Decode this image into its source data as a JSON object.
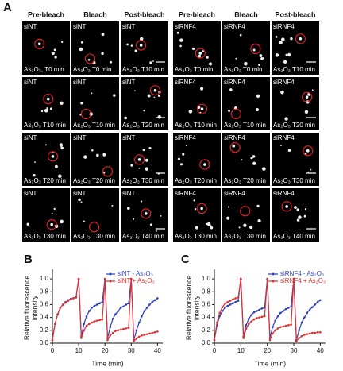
{
  "panel_a": {
    "label": "A",
    "grids": [
      {
        "headers": [
          "Pre-bleach",
          "Bleach",
          "Post-bleach"
        ],
        "rows": [
          [
            {
              "sample": "siNT",
              "time": "As₂O₃, T0 min"
            },
            {
              "sample": "siNT",
              "time": "As₂O₃ T0 min"
            },
            {
              "sample": "siNT",
              "time": "As₂O₃ T10 min"
            }
          ],
          [
            {
              "sample": "siNT",
              "time": "As₂O₃ T10 min"
            },
            {
              "sample": "siNT",
              "time": "As₂O₃ T10 min"
            },
            {
              "sample": "siNT",
              "time": "As₂O₃ T20 min"
            }
          ],
          [
            {
              "sample": "siNT",
              "time": "As₂O₃ T20 min"
            },
            {
              "sample": "siNT",
              "time": "As₂O₃ T20 min"
            },
            {
              "sample": "siNT",
              "time": "As₂O₃ T30 min"
            }
          ],
          [
            {
              "sample": "siNT",
              "time": "As₂O₃ T30 min"
            },
            {
              "sample": "siNT",
              "time": "As₂O₃ T30 min"
            },
            {
              "sample": "siNT",
              "time": "As₂O₃ T40 min"
            }
          ]
        ]
      },
      {
        "headers": [
          "Pre-bleach",
          "Bleach",
          "Post-bleach"
        ],
        "rows": [
          [
            {
              "sample": "siRNF4",
              "time": "As₂O₃ T0 min"
            },
            {
              "sample": "siRNF4",
              "time": "As₂O₃ T0 min"
            },
            {
              "sample": "siRNF4",
              "time": "As₂O₃ T10 min"
            }
          ],
          [
            {
              "sample": "siRNF4",
              "time": "As₂O₃ T10 min"
            },
            {
              "sample": "siRNF4",
              "time": "As₂O₃ T10 min"
            },
            {
              "sample": "siRNF4",
              "time": "As₂O₃ T20 min"
            }
          ],
          [
            {
              "sample": "siRNF4",
              "time": "As₂O₃ T20 min"
            },
            {
              "sample": "siRNF4",
              "time": "As₂O₃ T20 min"
            },
            {
              "sample": "siRNF4",
              "time": "As₂O₃ T30 min"
            }
          ],
          [
            {
              "sample": "siRNF4",
              "time": "As₂O₃ T30 min"
            },
            {
              "sample": "siRNF4",
              "time": "As₂O₃ T30 min"
            },
            {
              "sample": "siRNF4",
              "time": "As₂O₃ T40 min"
            }
          ]
        ]
      }
    ]
  },
  "chart_data": [
    {
      "type": "line",
      "panel_label": "B",
      "xlabel": "Time (min)",
      "ylabel": [
        "Relative fluorescence",
        "intensity"
      ],
      "xlim": [
        0,
        42
      ],
      "ylim": [
        0,
        1.1
      ],
      "xticks": [
        0,
        10,
        20,
        30,
        40
      ],
      "yticks": [
        {
          "value": 0,
          "label": "0.0"
        },
        {
          "value": 0.2,
          "label": "0.2"
        },
        {
          "value": 0.4,
          "label": "0.4"
        },
        {
          "value": 0.6,
          "label": "0.6"
        },
        {
          "value": 0.8,
          "label": "0.8"
        },
        {
          "value": 1,
          "label": "1.0"
        }
      ],
      "legend": "upper right",
      "x": [
        0,
        1,
        2,
        3,
        4,
        5,
        6,
        7,
        8,
        9,
        10,
        11,
        12,
        13,
        14,
        15,
        16,
        17,
        18,
        19,
        20,
        21,
        22,
        23,
        24,
        25,
        26,
        27,
        28,
        29,
        30,
        31,
        32,
        33,
        34,
        35,
        36,
        37,
        38,
        39,
        40
      ],
      "series": [
        {
          "name": "siNT - As₂O₃",
          "color": "#2b3fbf",
          "values": [
            0.05,
            0.3,
            0.45,
            0.55,
            0.6,
            0.64,
            0.67,
            0.69,
            0.7,
            0.72,
            1.0,
            0.1,
            0.3,
            0.42,
            0.5,
            0.55,
            0.58,
            0.6,
            0.62,
            0.64,
            1.0,
            0.08,
            0.25,
            0.38,
            0.45,
            0.5,
            0.55,
            0.57,
            0.6,
            0.62,
            1.0,
            0.05,
            0.2,
            0.32,
            0.42,
            0.5,
            0.55,
            0.6,
            0.64,
            0.67,
            0.7
          ]
        },
        {
          "name": "siNT + As₂O₃",
          "color": "#e0302f",
          "values": [
            0.05,
            0.3,
            0.45,
            0.55,
            0.6,
            0.63,
            0.66,
            0.68,
            0.7,
            0.71,
            1.0,
            0.08,
            0.2,
            0.27,
            0.3,
            0.32,
            0.34,
            0.35,
            0.36,
            0.37,
            1.0,
            0.05,
            0.12,
            0.16,
            0.19,
            0.2,
            0.21,
            0.22,
            0.23,
            0.24,
            1.0,
            0.03,
            0.07,
            0.1,
            0.12,
            0.13,
            0.14,
            0.15,
            0.16,
            0.17,
            0.18
          ]
        }
      ]
    },
    {
      "type": "line",
      "panel_label": "C",
      "xlabel": "Time (min)",
      "ylabel": [
        "Relative fluorescence",
        "intensity"
      ],
      "xlim": [
        0,
        42
      ],
      "ylim": [
        0,
        1.1
      ],
      "xticks": [
        0,
        10,
        20,
        30,
        40
      ],
      "yticks": [
        {
          "value": 0,
          "label": "0.0"
        },
        {
          "value": 0.2,
          "label": "0.2"
        },
        {
          "value": 0.4,
          "label": "0.4"
        },
        {
          "value": 0.6,
          "label": "0.6"
        },
        {
          "value": 0.8,
          "label": "0.8"
        },
        {
          "value": 1,
          "label": "1.0"
        }
      ],
      "legend": "upper right",
      "x": [
        0,
        1,
        2,
        3,
        4,
        5,
        6,
        7,
        8,
        9,
        10,
        11,
        12,
        13,
        14,
        15,
        16,
        17,
        18,
        19,
        20,
        21,
        22,
        23,
        24,
        25,
        26,
        27,
        28,
        29,
        30,
        31,
        32,
        33,
        34,
        35,
        36,
        37,
        38,
        39,
        40
      ],
      "series": [
        {
          "name": "siRNF4 - As₂O₃",
          "color": "#2b3fbf",
          "values": [
            0.05,
            0.28,
            0.42,
            0.5,
            0.55,
            0.58,
            0.6,
            0.62,
            0.64,
            0.66,
            1.0,
            0.1,
            0.28,
            0.38,
            0.44,
            0.48,
            0.5,
            0.52,
            0.54,
            0.55,
            1.0,
            0.08,
            0.25,
            0.35,
            0.42,
            0.47,
            0.5,
            0.53,
            0.55,
            0.57,
            1.0,
            0.05,
            0.2,
            0.32,
            0.4,
            0.47,
            0.52,
            0.56,
            0.6,
            0.64,
            0.67
          ]
        },
        {
          "name": "siRNF4 + As₂O₃",
          "color": "#e0302f",
          "values": [
            0.05,
            0.32,
            0.47,
            0.56,
            0.61,
            0.64,
            0.66,
            0.68,
            0.7,
            0.71,
            1.0,
            0.08,
            0.22,
            0.3,
            0.34,
            0.37,
            0.39,
            0.4,
            0.41,
            0.42,
            1.0,
            0.05,
            0.15,
            0.2,
            0.23,
            0.25,
            0.26,
            0.27,
            0.28,
            0.29,
            1.0,
            0.03,
            0.08,
            0.11,
            0.13,
            0.14,
            0.15,
            0.16,
            0.16,
            0.17,
            0.17
          ]
        }
      ]
    }
  ]
}
